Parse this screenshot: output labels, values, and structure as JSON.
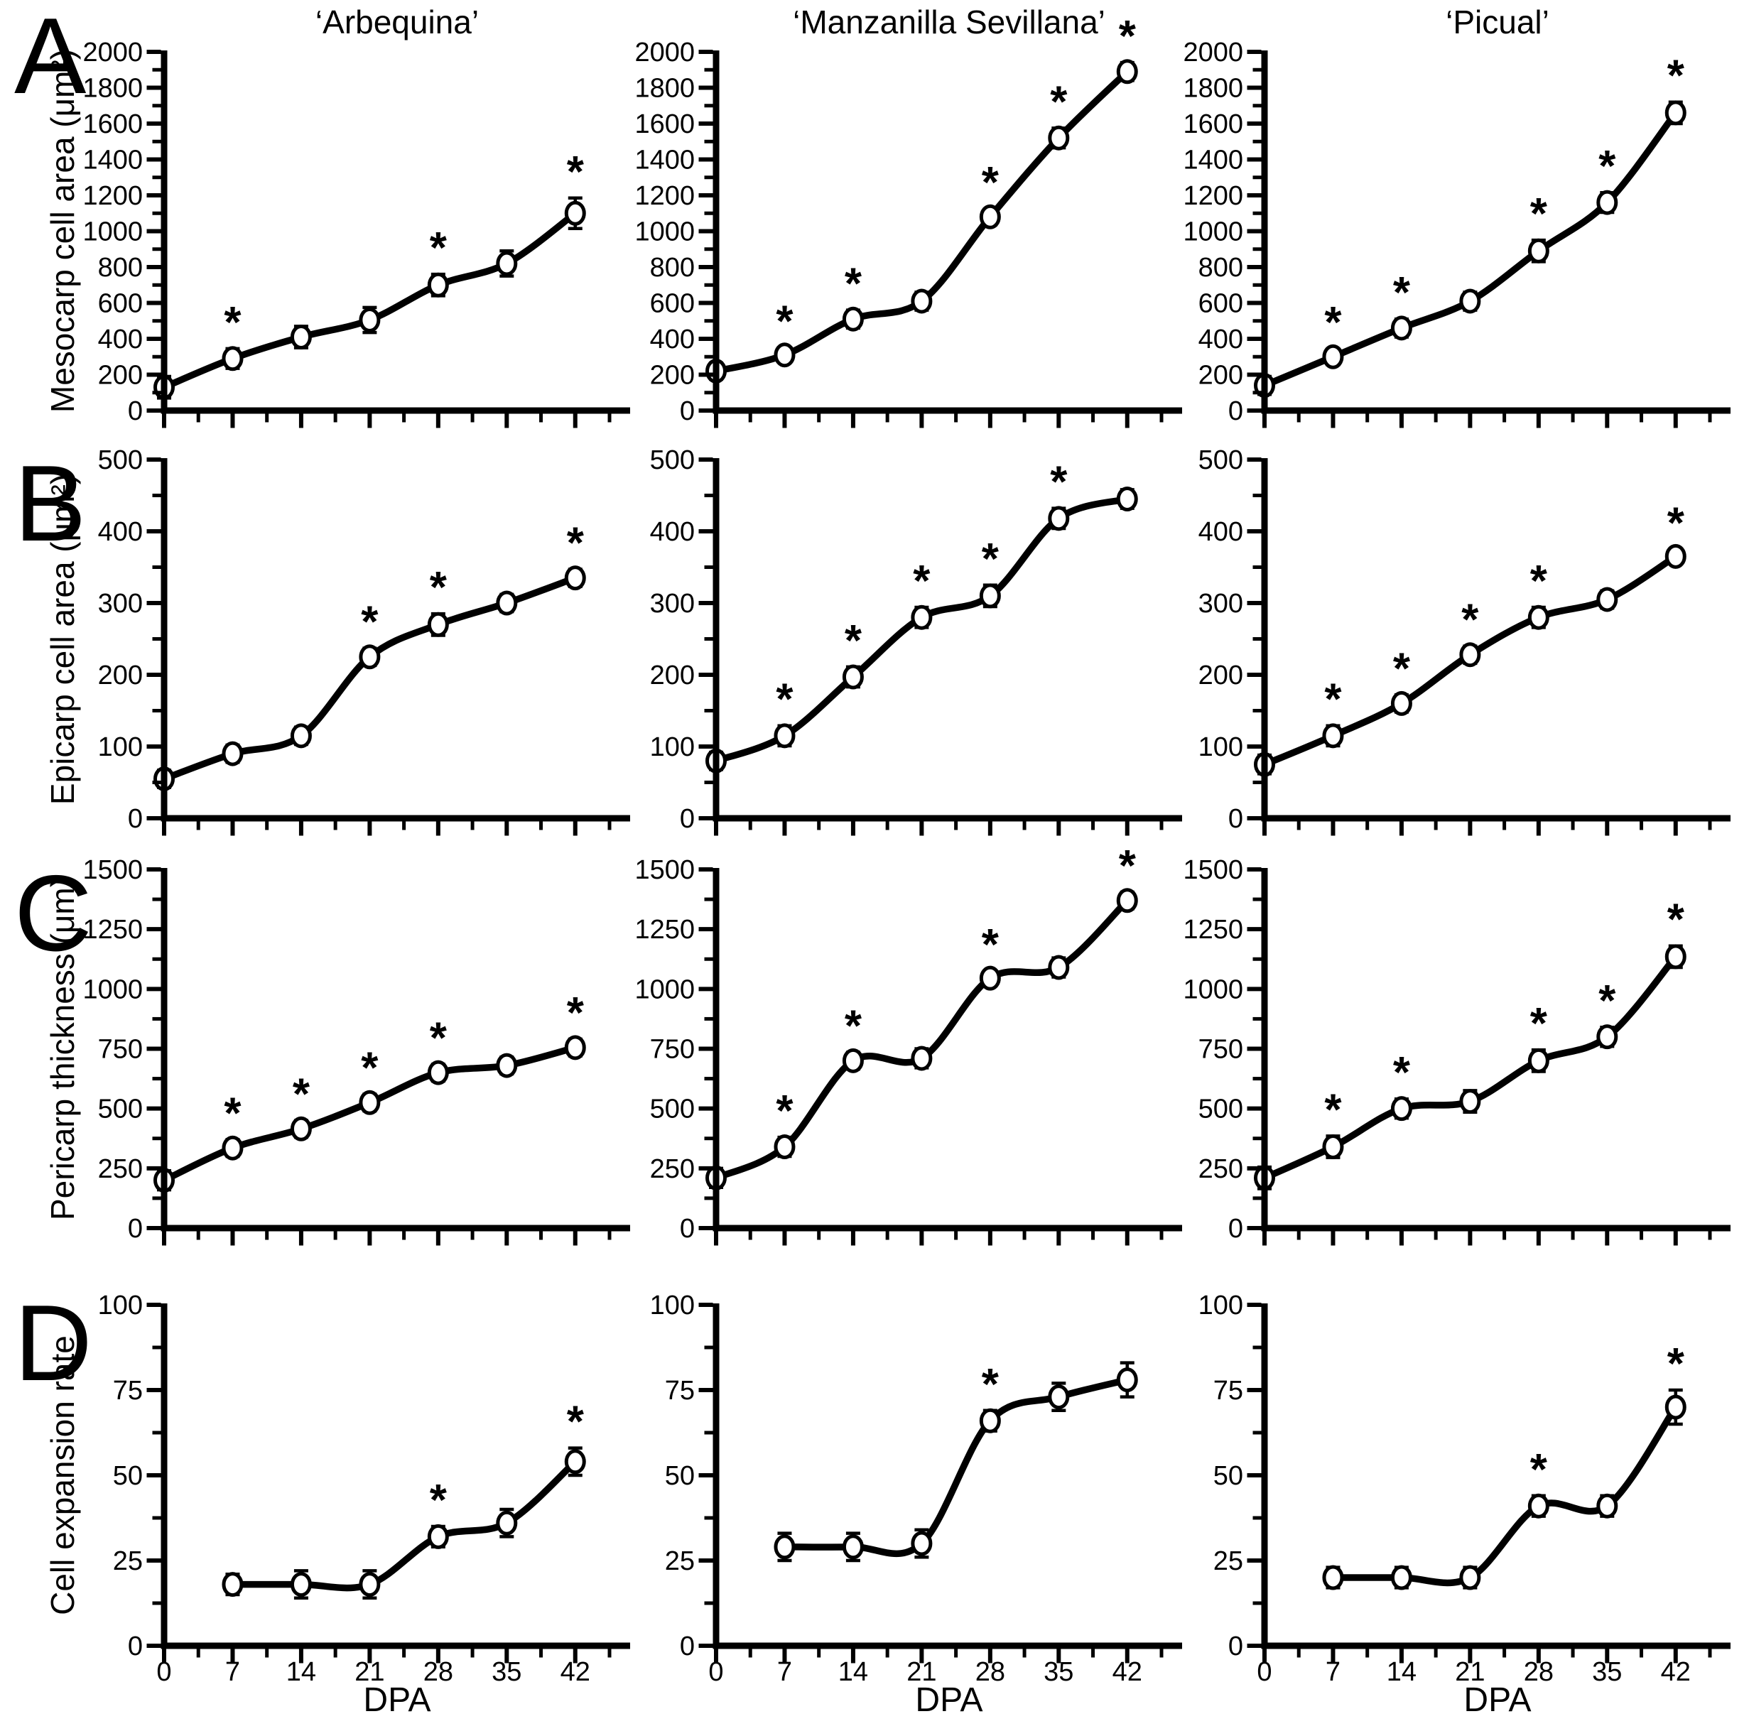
{
  "colors": {
    "ink": "#000000",
    "background": "#ffffff"
  },
  "figure": {
    "columns": [
      "‘Arbequina’",
      "‘Manzanilla Sevillana’",
      "‘Picual’"
    ],
    "row_letters": [
      "A",
      "B",
      "C",
      "D"
    ],
    "xlabel": "DPA",
    "x_ticks": [
      0,
      7,
      14,
      21,
      28,
      35,
      42
    ],
    "sig_symbol": "*"
  },
  "chart_data": [
    {
      "type": "scatter",
      "row": "A",
      "ylabel": "Mesocarp cell area (μm²)",
      "ylim": [
        0,
        2000
      ],
      "y_ticks": [
        0,
        200,
        400,
        600,
        800,
        1000,
        1200,
        1400,
        1600,
        1800,
        2000
      ],
      "x": [
        0,
        7,
        14,
        21,
        28,
        35,
        42
      ],
      "xlim": [
        0,
        47.6
      ],
      "grid": false,
      "series": [
        {
          "name": "Arbequina",
          "values": [
            130,
            290,
            410,
            505,
            700,
            820,
            1100
          ],
          "errors": [
            60,
            55,
            60,
            70,
            60,
            70,
            85
          ],
          "sig_x": [
            7,
            28,
            42
          ]
        },
        {
          "name": "Manzanilla Sevillana",
          "values": [
            220,
            310,
            510,
            610,
            1080,
            1520,
            1890
          ],
          "errors": [
            45,
            40,
            50,
            50,
            45,
            55,
            50
          ],
          "sig_x": [
            7,
            14,
            28,
            35,
            42
          ]
        },
        {
          "name": "Picual",
          "values": [
            140,
            300,
            460,
            610,
            890,
            1160,
            1660
          ],
          "errors": [
            50,
            45,
            50,
            50,
            60,
            55,
            60
          ],
          "sig_x": [
            7,
            14,
            28,
            35,
            42
          ]
        }
      ]
    },
    {
      "type": "scatter",
      "row": "B",
      "ylabel": "Epicarp cell area (μm²)",
      "ylim": [
        0,
        500
      ],
      "y_ticks": [
        0,
        100,
        200,
        300,
        400,
        500
      ],
      "x": [
        0,
        7,
        14,
        21,
        28,
        35,
        42
      ],
      "xlim": [
        0,
        47.6
      ],
      "grid": false,
      "series": [
        {
          "name": "Arbequina",
          "values": [
            55,
            90,
            115,
            225,
            270,
            300,
            335
          ],
          "errors": [
            12,
            12,
            12,
            12,
            15,
            12,
            12
          ],
          "sig_x": [
            21,
            28,
            42
          ]
        },
        {
          "name": "Manzanilla Sevillana",
          "values": [
            80,
            115,
            197,
            280,
            310,
            418,
            445
          ],
          "errors": [
            12,
            14,
            14,
            14,
            15,
            14,
            13
          ],
          "sig_x": [
            7,
            14,
            21,
            28,
            35
          ]
        },
        {
          "name": "Picual",
          "values": [
            75,
            115,
            160,
            228,
            280,
            305,
            365
          ],
          "errors": [
            13,
            14,
            12,
            12,
            14,
            12,
            10
          ],
          "sig_x": [
            7,
            14,
            21,
            28,
            42
          ]
        }
      ]
    },
    {
      "type": "scatter",
      "row": "C",
      "ylabel": "Pericarp thickness (μm)",
      "ylim": [
        0,
        1500
      ],
      "y_ticks": [
        0,
        250,
        500,
        750,
        1000,
        1250,
        1500
      ],
      "x": [
        0,
        7,
        14,
        21,
        28,
        35,
        42
      ],
      "xlim": [
        0,
        47.6
      ],
      "grid": false,
      "series": [
        {
          "name": "Arbequina",
          "values": [
            200,
            335,
            415,
            525,
            650,
            680,
            755
          ],
          "errors": [
            40,
            35,
            35,
            35,
            35,
            35,
            35
          ],
          "sig_x": [
            7,
            14,
            21,
            28,
            42
          ]
        },
        {
          "name": "Manzanilla Sevillana",
          "values": [
            210,
            340,
            700,
            710,
            1045,
            1090,
            1370
          ],
          "errors": [
            40,
            40,
            35,
            40,
            30,
            40,
            35
          ],
          "sig_x": [
            7,
            14,
            28,
            42
          ]
        },
        {
          "name": "Picual",
          "values": [
            210,
            340,
            500,
            530,
            700,
            800,
            1135
          ],
          "errors": [
            45,
            45,
            40,
            45,
            45,
            40,
            45
          ],
          "sig_x": [
            7,
            14,
            28,
            35,
            42
          ]
        }
      ]
    },
    {
      "type": "scatter",
      "row": "D",
      "ylabel": "Cell expansion rate",
      "ylim": [
        0,
        100
      ],
      "y_ticks": [
        0,
        25,
        50,
        75,
        100
      ],
      "x": [
        7,
        14,
        21,
        28,
        35,
        42
      ],
      "xlim": [
        0,
        47.6
      ],
      "grid": false,
      "series": [
        {
          "name": "Arbequina",
          "values": [
            18,
            18,
            18,
            32,
            36,
            54
          ],
          "errors": [
            3,
            4,
            4,
            3,
            4,
            4
          ],
          "sig_x": [
            28,
            42
          ]
        },
        {
          "name": "Manzanilla Sevillana",
          "values": [
            29,
            29,
            30,
            66,
            73,
            78
          ],
          "errors": [
            4,
            4,
            4,
            3,
            4,
            5
          ],
          "sig_x": [
            28
          ]
        },
        {
          "name": "Picual",
          "values": [
            20,
            20,
            20,
            41,
            41,
            70
          ],
          "errors": [
            3,
            3,
            3,
            3,
            3,
            5
          ],
          "sig_x": [
            28,
            42
          ]
        }
      ]
    }
  ]
}
